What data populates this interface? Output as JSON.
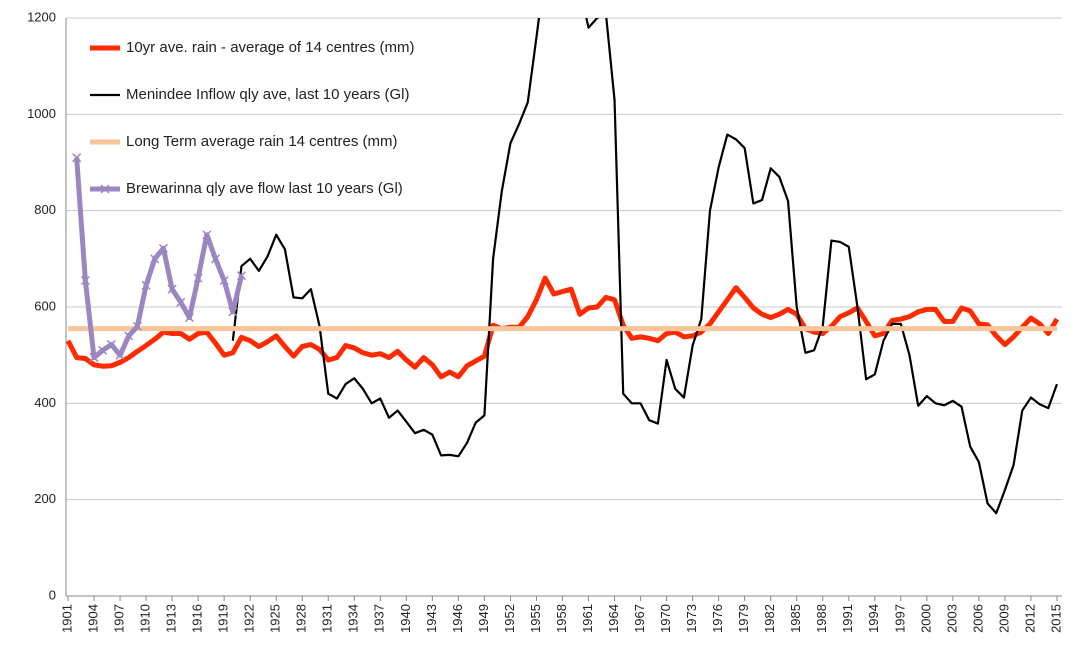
{
  "chart_data": {
    "type": "line",
    "x": [
      1901,
      1902,
      1903,
      1904,
      1905,
      1906,
      1907,
      1908,
      1909,
      1910,
      1911,
      1912,
      1913,
      1914,
      1915,
      1916,
      1917,
      1918,
      1919,
      1920,
      1921,
      1922,
      1923,
      1924,
      1925,
      1926,
      1927,
      1928,
      1929,
      1930,
      1931,
      1932,
      1933,
      1934,
      1935,
      1936,
      1937,
      1938,
      1939,
      1940,
      1941,
      1942,
      1943,
      1944,
      1945,
      1946,
      1947,
      1948,
      1949,
      1950,
      1951,
      1952,
      1953,
      1954,
      1955,
      1956,
      1957,
      1958,
      1959,
      1960,
      1961,
      1962,
      1963,
      1964,
      1965,
      1966,
      1967,
      1968,
      1969,
      1970,
      1971,
      1972,
      1973,
      1974,
      1975,
      1976,
      1977,
      1978,
      1979,
      1980,
      1981,
      1982,
      1983,
      1984,
      1985,
      1986,
      1987,
      1988,
      1989,
      1990,
      1991,
      1992,
      1993,
      1994,
      1995,
      1996,
      1997,
      1998,
      1999,
      2000,
      2001,
      2002,
      2003,
      2004,
      2005,
      2006,
      2007,
      2008,
      2009,
      2010,
      2011,
      2012,
      2013,
      2014,
      2015
    ],
    "xlim": [
      1900.77,
      2015.58
    ],
    "xticks": [
      1901,
      1904,
      1907,
      1910,
      1913,
      1916,
      1919,
      1922,
      1925,
      1928,
      1931,
      1934,
      1937,
      1940,
      1943,
      1946,
      1949,
      1952,
      1955,
      1958,
      1961,
      1964,
      1967,
      1970,
      1973,
      1976,
      1979,
      1982,
      1985,
      1988,
      1991,
      1994,
      1997,
      2000,
      2003,
      2006,
      2009,
      2012,
      2015
    ],
    "ylim": [
      0,
      1200
    ],
    "yticks": [
      0,
      200,
      400,
      600,
      800,
      1000,
      1200
    ],
    "grid": true,
    "legend": "top-left",
    "series": [
      {
        "name": "10yr ave. rain - average of 14 centres (mm)",
        "color": "#ff2a00",
        "values": [
          530,
          495,
          493,
          480,
          477,
          478,
          485,
          495,
          508,
          520,
          533,
          548,
          545,
          545,
          533,
          545,
          548,
          525,
          500,
          505,
          537,
          530,
          518,
          528,
          540,
          518,
          498,
          518,
          522,
          512,
          490,
          495,
          520,
          515,
          505,
          500,
          503,
          495,
          508,
          490,
          475,
          495,
          480,
          455,
          465,
          455,
          478,
          488,
          498,
          562,
          555,
          558,
          558,
          580,
          615,
          660,
          627,
          632,
          637,
          585,
          598,
          600,
          620,
          615,
          562,
          535,
          538,
          535,
          530,
          545,
          548,
          538,
          540,
          548,
          565,
          590,
          615,
          640,
          620,
          598,
          585,
          578,
          585,
          595,
          585,
          555,
          548,
          545,
          560,
          580,
          588,
          598,
          570,
          540,
          545,
          572,
          575,
          580,
          590,
          595,
          595,
          570,
          570,
          598,
          592,
          565,
          563,
          540,
          522,
          538,
          558,
          577,
          565,
          545,
          575
        ]
      },
      {
        "name": "Menindee Inflow qly ave, last 10 years (Gl)",
        "color": "#000000",
        "values": [
          null,
          null,
          null,
          null,
          null,
          null,
          null,
          null,
          null,
          null,
          null,
          null,
          null,
          null,
          null,
          null,
          null,
          null,
          null,
          530,
          685,
          700,
          675,
          705,
          750,
          720,
          620,
          618,
          637,
          560,
          420,
          410,
          440,
          452,
          430,
          400,
          410,
          370,
          385,
          362,
          338,
          345,
          335,
          292,
          293,
          290,
          318,
          360,
          375,
          700,
          840,
          940,
          980,
          1025,
          1160,
          1300,
          1350,
          1320,
          1300,
          1260,
          1180,
          1200,
          1210,
          1030,
          420,
          400,
          400,
          365,
          358,
          490,
          430,
          412,
          520,
          575,
          800,
          890,
          958,
          948,
          930,
          815,
          822,
          888,
          870,
          820,
          600,
          505,
          510,
          560,
          738,
          735,
          725,
          600,
          450,
          460,
          530,
          565,
          565,
          500,
          395,
          415,
          400,
          396,
          405,
          393,
          310,
          278,
          192,
          172,
          220,
          272,
          385,
          412,
          398,
          390,
          440
        ]
      },
      {
        "name": "Long Term average rain 14 centres (mm)",
        "color": "#f8c49a",
        "values": [
          555,
          555,
          555,
          555,
          555,
          555,
          555,
          555,
          555,
          555,
          555,
          555,
          555,
          555,
          555,
          555,
          555,
          555,
          555,
          555,
          555,
          555,
          555,
          555,
          555,
          555,
          555,
          555,
          555,
          555,
          555,
          555,
          555,
          555,
          555,
          555,
          555,
          555,
          555,
          555,
          555,
          555,
          555,
          555,
          555,
          555,
          555,
          555,
          555,
          555,
          555,
          555,
          555,
          555,
          555,
          555,
          555,
          555,
          555,
          555,
          555,
          555,
          555,
          555,
          555,
          555,
          555,
          555,
          555,
          555,
          555,
          555,
          555,
          555,
          555,
          555,
          555,
          555,
          555,
          555,
          555,
          555,
          555,
          555,
          555,
          555,
          555,
          555,
          555,
          555,
          555,
          555,
          555,
          555,
          555,
          555,
          555,
          555,
          555,
          555,
          555,
          555,
          555,
          555,
          555,
          555,
          555,
          555,
          555,
          555,
          555,
          555,
          555,
          555,
          555
        ]
      },
      {
        "name": "Brewarinna qly ave flow last 10 years (Gl)",
        "color": "#9b86c2",
        "marker": "x",
        "values": [
          null,
          910,
          655,
          495,
          510,
          522,
          500,
          540,
          560,
          645,
          700,
          722,
          637,
          610,
          578,
          660,
          750,
          700,
          655,
          590,
          665,
          null,
          null,
          null,
          null,
          null,
          null,
          null,
          null,
          null,
          null,
          null,
          null,
          null,
          null,
          null,
          null,
          null,
          null,
          null,
          null,
          null,
          null,
          null,
          null,
          null,
          null,
          null,
          null,
          null,
          null,
          null,
          null,
          null,
          null,
          null,
          null,
          null,
          null,
          null,
          null,
          null,
          null,
          null,
          null,
          null,
          null,
          null,
          null,
          null,
          null,
          null,
          null,
          null,
          null,
          null,
          null,
          null,
          null,
          null,
          null,
          null,
          null,
          null,
          null,
          null,
          null,
          null,
          null,
          null,
          null,
          null,
          null,
          null,
          null,
          null,
          null,
          null,
          null,
          null,
          null,
          null,
          null,
          null,
          null,
          null,
          null,
          null,
          null,
          null,
          null,
          null,
          null,
          null,
          null
        ]
      }
    ]
  }
}
